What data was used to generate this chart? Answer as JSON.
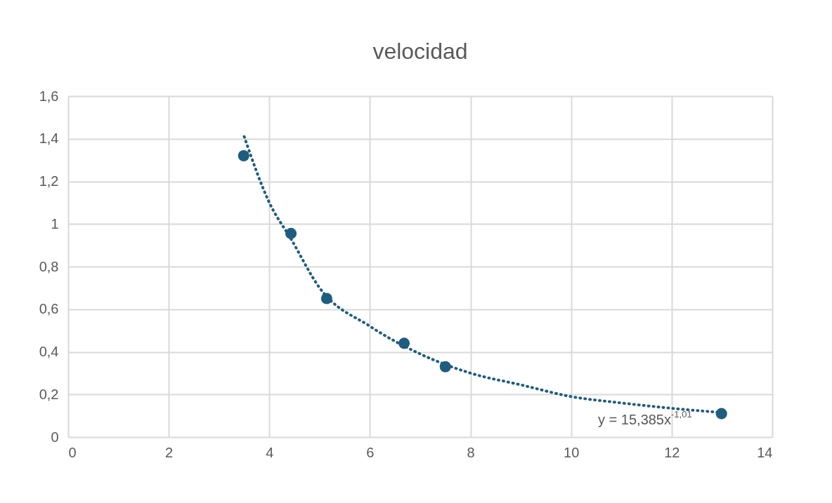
{
  "chart_data": {
    "type": "scatter",
    "title": "velocidad",
    "series": [
      {
        "color": "#1f5d80",
        "marker": "circle",
        "x": [
          3.49,
          4.43,
          5.14,
          6.68,
          7.5,
          12.99
        ],
        "values": [
          1.32,
          0.955,
          0.65,
          0.44,
          0.33,
          0.11
        ]
      },
      {
        "type": "line",
        "color": "#1f5d80",
        "line_style": "dotted",
        "marker": "none",
        "x": [
          3.5,
          4,
          4.43,
          5,
          6,
          7,
          8,
          9,
          10,
          11,
          12,
          13
        ],
        "values": [
          1.41,
          1.1,
          0.93,
          0.7,
          0.52,
          0.39,
          0.3,
          0.245,
          0.19,
          0.16,
          0.135,
          0.115
        ]
      }
    ],
    "xlim": [
      0,
      14
    ],
    "xticks": [
      0,
      2,
      4,
      6,
      8,
      10,
      12,
      14
    ],
    "ylim": [
      0,
      1.6
    ],
    "yticks": [
      0,
      {
        "value": 0.2,
        "label": "0,2"
      },
      {
        "value": 0.4,
        "label": "0,4"
      },
      {
        "value": 0.6,
        "label": "0,6"
      },
      {
        "value": 0.8,
        "label": "0,8"
      },
      1,
      {
        "value": 1.2,
        "label": "1,2"
      },
      {
        "value": 1.4,
        "label": "1,4"
      },
      {
        "value": 1.6,
        "label": "1,6"
      }
    ],
    "grid": true,
    "annotations": [
      "y = 15,385x$^{-1,01}$"
    ]
  }
}
